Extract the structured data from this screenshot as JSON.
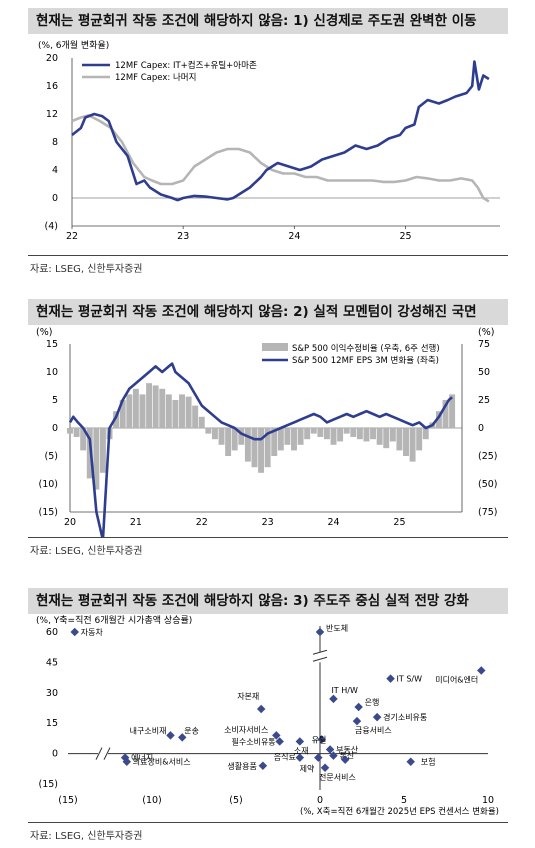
{
  "colors": {
    "navy": "#2e3d8f",
    "gray": "#b5b5b5",
    "point": "#3b4a8c",
    "title_bg": "#d9d9d9"
  },
  "charts_text": {
    "c1_title": "현재는 평균회귀 작동 조건에 해당하지 않음: 1) 신경제로 주도권 완벽한 이동",
    "c1_unit": "(%, 6개월 변화율)",
    "c1_source": "자료: LSEG, 신한투자증권",
    "c2_title": "현재는 평균회귀 작동 조건에 해당하지 않음: 2) 실적 모멘텀이 강성해진 국면",
    "c2_unit_left": "(%)",
    "c2_unit_right": "(%)",
    "c2_source": "자료: LSEG, 신한투자증권",
    "c3_title": "현재는 평균회귀 작동 조건에 해당하지 않음: 3) 주도주 중심 실적 전망 강화",
    "c3_unit_y": "(%, Y축=직전 6개월간 시가총액 상승률)",
    "c3_unit_x": "(%, X축=직전 6개월간 2025년 EPS 컨센서스 변화율)",
    "c3_source": "자료: LSEG, 신한투자증권"
  },
  "chart_data": [
    {
      "type": "line",
      "title": "현재는 평균회귀 작동 조건에 해당하지 않음: 1) 신경제로 주도권 완벽한 이동",
      "ylabel": "(%, 6개월 변화율)",
      "ylim": [
        -4,
        20
      ],
      "yticks": [
        "(4)",
        "0",
        "4",
        "8",
        "12",
        "16",
        "20"
      ],
      "xticks": [
        "22",
        "23",
        "24",
        "25"
      ],
      "xlim": [
        2022.0,
        2025.85
      ],
      "legend_position": "top-left",
      "series": [
        {
          "name": "12MF Capex: IT+컴즈+유틸+아마존",
          "color": "#2e3d8f",
          "x": [
            2022.0,
            2022.08,
            2022.12,
            2022.2,
            2022.27,
            2022.33,
            2022.4,
            2022.5,
            2022.58,
            2022.65,
            2022.7,
            2022.8,
            2022.9,
            2022.95,
            2023.0,
            2023.1,
            2023.2,
            2023.3,
            2023.4,
            2023.45,
            2023.5,
            2023.6,
            2023.7,
            2023.75,
            2023.85,
            2023.95,
            2024.05,
            2024.15,
            2024.25,
            2024.35,
            2024.45,
            2024.55,
            2024.65,
            2024.75,
            2024.85,
            2024.95,
            2025.0,
            2025.08,
            2025.12,
            2025.2,
            2025.3,
            2025.38,
            2025.45,
            2025.55,
            2025.6,
            2025.62,
            2025.66,
            2025.7,
            2025.75
          ],
          "y": [
            9,
            10,
            11.5,
            12,
            11.7,
            11,
            8,
            6,
            2,
            2.5,
            1.5,
            0.5,
            0,
            -0.3,
            0,
            0.3,
            0.2,
            0,
            -0.2,
            0,
            0.5,
            1.5,
            3,
            4,
            5,
            4.5,
            4,
            4.5,
            5.5,
            6,
            6.5,
            7.5,
            7,
            7.5,
            8.5,
            9,
            10,
            10.5,
            13,
            14,
            13.5,
            14,
            14.5,
            15,
            16,
            19.5,
            15.5,
            17.5,
            17
          ]
        },
        {
          "name": "12MF Capex: 나머지",
          "color": "#b5b5b5",
          "x": [
            2022.0,
            2022.08,
            2022.15,
            2022.25,
            2022.35,
            2022.45,
            2022.55,
            2022.65,
            2022.72,
            2022.8,
            2022.9,
            2023.0,
            2023.1,
            2023.2,
            2023.3,
            2023.4,
            2023.5,
            2023.6,
            2023.7,
            2023.8,
            2023.9,
            2024.0,
            2024.1,
            2024.2,
            2024.3,
            2024.4,
            2024.5,
            2024.6,
            2024.7,
            2024.8,
            2024.9,
            2025.0,
            2025.1,
            2025.2,
            2025.3,
            2025.4,
            2025.5,
            2025.6,
            2025.65,
            2025.7,
            2025.75
          ],
          "y": [
            11,
            11.5,
            11.8,
            11,
            10,
            8,
            5,
            3,
            2.5,
            2,
            2,
            2.5,
            4.5,
            5.5,
            6.5,
            7,
            7,
            6.5,
            5,
            4,
            3.5,
            3.5,
            3,
            3,
            2.5,
            2.5,
            2.5,
            2.5,
            2.5,
            2.3,
            2.3,
            2.5,
            3,
            2.8,
            2.5,
            2.5,
            2.8,
            2.5,
            1.5,
            0,
            -0.5
          ]
        }
      ]
    },
    {
      "type": "line",
      "title": "현재는 평균회귀 작동 조건에 해당하지 않음: 2) 실적 모멘텀이 강성해진 국면",
      "ylim_left": [
        -15,
        15
      ],
      "ylim_right": [
        -75,
        75
      ],
      "yticks_left": [
        "15",
        "10",
        "5",
        "0",
        "(5)",
        "(10)",
        "(15)"
      ],
      "yticks_right": [
        "75",
        "50",
        "25",
        "0",
        "(25)",
        "(50)",
        "(75)"
      ],
      "xticks": [
        "20",
        "21",
        "22",
        "23",
        "24",
        "25"
      ],
      "xlim": [
        2020.0,
        2025.95
      ],
      "legend_position": "top-right",
      "series": [
        {
          "name": "S&P 500 이익수정비율 (우축, 6주 선행)",
          "color": "#b5b5b5",
          "kind": "bar",
          "x": [
            2020.0,
            2020.1,
            2020.2,
            2020.3,
            2020.4,
            2020.5,
            2020.6,
            2020.7,
            2020.8,
            2020.9,
            2021.0,
            2021.1,
            2021.2,
            2021.3,
            2021.4,
            2021.5,
            2021.6,
            2021.7,
            2021.8,
            2021.9,
            2022.0,
            2022.1,
            2022.2,
            2022.3,
            2022.4,
            2022.5,
            2022.6,
            2022.7,
            2022.8,
            2022.9,
            2023.0,
            2023.1,
            2023.2,
            2023.3,
            2023.4,
            2023.5,
            2023.6,
            2023.7,
            2023.8,
            2023.9,
            2024.0,
            2024.1,
            2024.2,
            2024.3,
            2024.4,
            2024.5,
            2024.6,
            2024.7,
            2024.8,
            2024.9,
            2025.0,
            2025.1,
            2025.2,
            2025.3,
            2025.4,
            2025.5,
            2025.6,
            2025.7,
            2025.8
          ],
          "y": [
            -5,
            -8,
            -20,
            -45,
            -55,
            -40,
            -10,
            15,
            25,
            30,
            35,
            30,
            40,
            38,
            35,
            30,
            25,
            30,
            28,
            20,
            10,
            -5,
            -10,
            -15,
            -25,
            -20,
            -15,
            -30,
            -35,
            -40,
            -35,
            -25,
            -20,
            -15,
            -20,
            -15,
            -10,
            -5,
            -8,
            -10,
            -15,
            -12,
            -5,
            -8,
            -10,
            -12,
            -10,
            -15,
            -18,
            -12,
            -20,
            -25,
            -30,
            -20,
            -10,
            5,
            15,
            25,
            30
          ]
        },
        {
          "name": "S&P 500 12MF EPS 3M 변화율 (좌축)",
          "color": "#2e3d8f",
          "kind": "line",
          "x": [
            2020.0,
            2020.05,
            2020.12,
            2020.2,
            2020.25,
            2020.3,
            2020.4,
            2020.5,
            2020.55,
            2020.6,
            2020.7,
            2020.8,
            2020.9,
            2021.0,
            2021.1,
            2021.2,
            2021.3,
            2021.4,
            2021.5,
            2021.55,
            2021.6,
            2021.7,
            2021.8,
            2021.9,
            2022.0,
            2022.1,
            2022.2,
            2022.3,
            2022.4,
            2022.5,
            2022.6,
            2022.7,
            2022.8,
            2022.9,
            2023.0,
            2023.1,
            2023.2,
            2023.3,
            2023.4,
            2023.5,
            2023.6,
            2023.7,
            2023.8,
            2023.9,
            2024.0,
            2024.1,
            2024.2,
            2024.3,
            2024.4,
            2024.5,
            2024.6,
            2024.7,
            2024.8,
            2024.9,
            2025.0,
            2025.1,
            2025.2,
            2025.3,
            2025.4,
            2025.5,
            2025.6,
            2025.7,
            2025.75,
            2025.8
          ],
          "y": [
            1,
            2,
            1,
            0,
            -1,
            -2,
            -15,
            -20,
            -10,
            0,
            2,
            5,
            7,
            8,
            9,
            10,
            11,
            10,
            11,
            11.5,
            10,
            9,
            8,
            6,
            4,
            3,
            2,
            1,
            0.5,
            0,
            -1,
            -1.5,
            -2,
            -2,
            -1,
            -0.5,
            0,
            0.5,
            1,
            1.5,
            2,
            2.5,
            2,
            1,
            1.5,
            2,
            2.5,
            2,
            2.5,
            3,
            2.5,
            2,
            2.5,
            2,
            1.5,
            1,
            0.5,
            1,
            0,
            0.5,
            2,
            4,
            5,
            5.5
          ]
        }
      ]
    },
    {
      "type": "scatter",
      "title": "현재는 평균회귀 작동 조건에 해당하지 않음: 3) 주도주 중심 실적 전망 강화",
      "xlabel": "(%, X축=직전 6개월간 2025년 EPS 컨센서스 변화율)",
      "ylabel": "(%, Y축=직전 6개월간 시가총액 상승률)",
      "xlim": [
        -15,
        10
      ],
      "ylim": [
        -15,
        60
      ],
      "xticks": [
        "(15)",
        "(10)",
        "(5)",
        "0",
        "5",
        "10"
      ],
      "yticks": [
        "60",
        "45",
        "30",
        "15",
        "0",
        "(15)"
      ],
      "points": [
        {
          "label": "자동차",
          "x": -14.6,
          "y": 60
        },
        {
          "label": "반도체",
          "x": 0,
          "y": 60
        },
        {
          "label": "IT S/W",
          "x": 4.2,
          "y": 37
        },
        {
          "label": "미디어&엔터",
          "x": 9.6,
          "y": 41
        },
        {
          "label": "IT H/W",
          "x": 0.8,
          "y": 27
        },
        {
          "label": "은행",
          "x": 2.3,
          "y": 23
        },
        {
          "label": "자본재",
          "x": -3.5,
          "y": 22
        },
        {
          "label": "경기소비유통",
          "x": 3.4,
          "y": 18
        },
        {
          "label": "금융서비스",
          "x": 2.2,
          "y": 16
        },
        {
          "label": "내구소비재",
          "x": -8.9,
          "y": 9
        },
        {
          "label": "운송",
          "x": -8.2,
          "y": 8
        },
        {
          "label": "소비자서비스",
          "x": -2.6,
          "y": 9
        },
        {
          "label": "필수소비유통",
          "x": -2.4,
          "y": 6
        },
        {
          "label": "유틸",
          "x": 0.1,
          "y": 7
        },
        {
          "label": "부동산",
          "x": 0.6,
          "y": 2
        },
        {
          "label": "소재",
          "x": -1.2,
          "y": 6
        },
        {
          "label": "에너지",
          "x": -11.6,
          "y": -2
        },
        {
          "label": "의료장비&서비스",
          "x": -11.5,
          "y": -4
        },
        {
          "label": "음식료",
          "x": -1.2,
          "y": -2
        },
        {
          "label": "제약",
          "x": -0.1,
          "y": -2
        },
        {
          "label": "전문서비스",
          "x": 0.3,
          "y": -7
        },
        {
          "label": "통신",
          "x": 0.8,
          "y": -1
        },
        {
          "label": "보험",
          "x": 5.4,
          "y": -4
        },
        {
          "label": "생활용품",
          "x": -3.4,
          "y": -6
        },
        {
          "label": "(none)",
          "x": 1.5,
          "y": -3
        }
      ]
    }
  ]
}
